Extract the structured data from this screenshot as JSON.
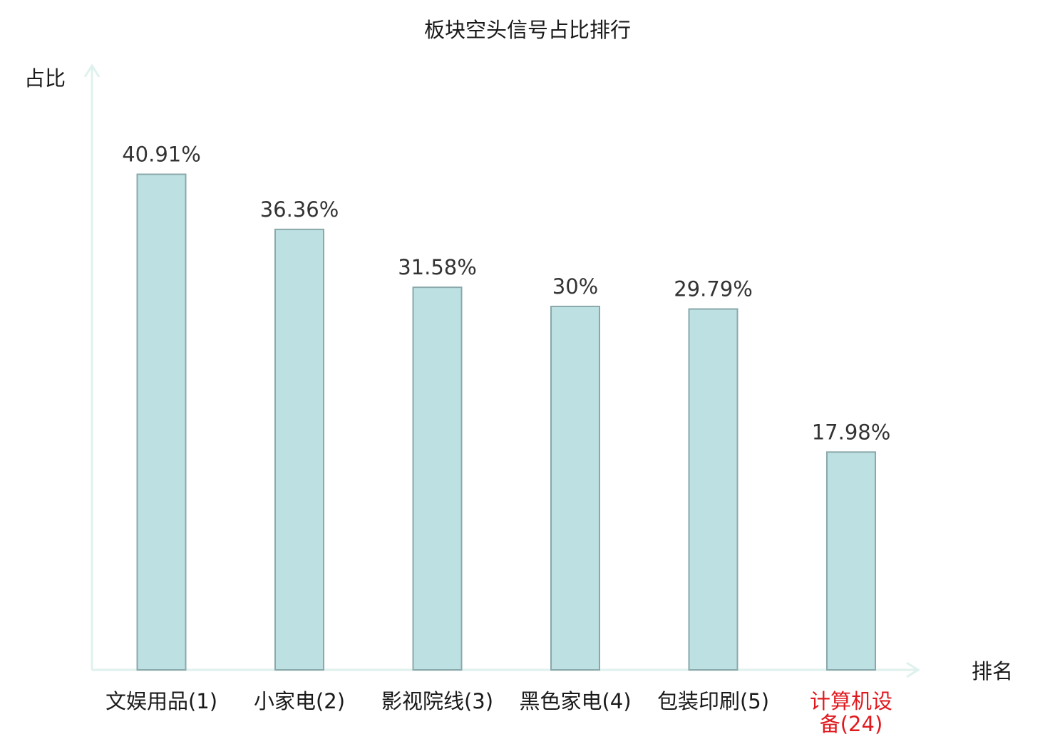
{
  "chart_data": {
    "type": "bar",
    "title": "板块空头信号占比排行",
    "ylabel": "占比",
    "xlabel": "排名",
    "categories": [
      [
        "文娱用品(1)"
      ],
      [
        "小家电(2)"
      ],
      [
        "影视院线(3)"
      ],
      [
        "黑色家电(4)"
      ],
      [
        "包装印刷(5)"
      ],
      [
        "计算机设",
        "备(24)"
      ]
    ],
    "values": [
      40.91,
      36.36,
      31.58,
      30,
      29.79,
      17.98
    ],
    "value_labels": [
      "40.91%",
      "36.36%",
      "31.58%",
      "30%",
      "29.79%",
      "17.98%"
    ],
    "highlight_index": 5,
    "ylim": [
      0,
      45
    ],
    "grid": false,
    "legend": "none",
    "colors": {
      "bar_fill": "#bde0e2",
      "bar_stroke": "#8aa8aa",
      "axis": "#dff1ee",
      "highlight_text": "#e0191e"
    }
  }
}
